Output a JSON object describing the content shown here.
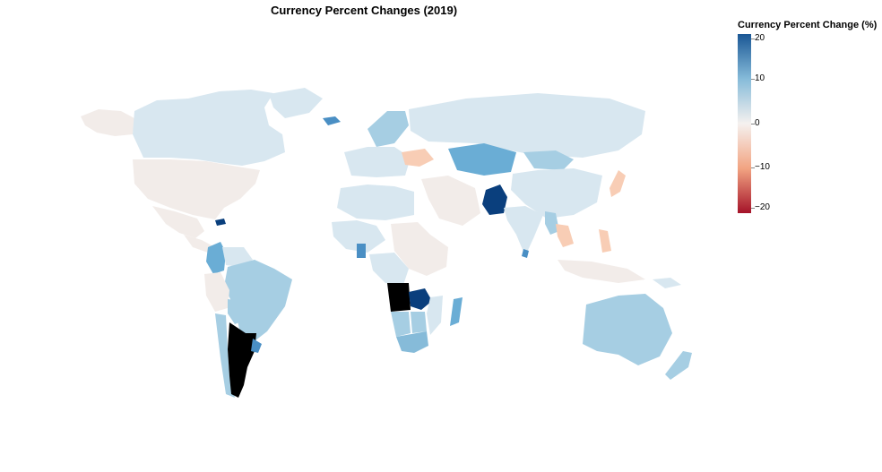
{
  "title": "Currency Percent Changes (2019)",
  "legend": {
    "title": "Currency Percent Change (%)",
    "ticks": [
      "20",
      "10",
      "0",
      "−10",
      "−20"
    ],
    "domain": [
      -22,
      22
    ],
    "colors": {
      "max": "#1a5795",
      "mid": "#f5f1ef",
      "min": "#a51329"
    }
  },
  "colors": {
    "no_data": "#000000",
    "strong_positive": "#0a3f7d",
    "positive": "#6aadd5",
    "mild_positive": "#a6cee3",
    "neutral_pos": "#d8e7f0",
    "neutral": "#f2ece9",
    "negative": "#f8cdb5",
    "background": "#ffffff"
  },
  "chart_data": {
    "type": "choropleth",
    "title": "Currency Percent Changes (2019)",
    "value_label": "Currency Percent Change (%)",
    "scale_range": [
      -22,
      22
    ],
    "regions": [
      {
        "name": "Canada",
        "value": 2
      },
      {
        "name": "United States",
        "value": 0
      },
      {
        "name": "Greenland",
        "value": 2
      },
      {
        "name": "Alaska",
        "value": 0
      },
      {
        "name": "Mexico",
        "value": 0
      },
      {
        "name": "Colombia",
        "value": 9
      },
      {
        "name": "Brazil",
        "value": 6
      },
      {
        "name": "Peru",
        "value": 1
      },
      {
        "name": "Chile",
        "value": 4
      },
      {
        "name": "Argentina",
        "value": null
      },
      {
        "name": "Uruguay",
        "value": 12
      },
      {
        "name": "Bolivia",
        "value": 3
      },
      {
        "name": "Paraguay",
        "value": 5
      },
      {
        "name": "Venezuela",
        "value": 3
      },
      {
        "name": "Dominican Republic",
        "value": 20
      },
      {
        "name": "Iceland",
        "value": 12
      },
      {
        "name": "Scandinavia",
        "value": 5
      },
      {
        "name": "Western Europe",
        "value": 3
      },
      {
        "name": "Ukraine",
        "value": -4
      },
      {
        "name": "Russia",
        "value": 2
      },
      {
        "name": "Kazakhstan",
        "value": 9
      },
      {
        "name": "Mongolia",
        "value": 6
      },
      {
        "name": "China",
        "value": 2
      },
      {
        "name": "Japan",
        "value": -2
      },
      {
        "name": "Pakistan",
        "value": 22
      },
      {
        "name": "India",
        "value": 2
      },
      {
        "name": "Sri Lanka",
        "value": 9
      },
      {
        "name": "Myanmar",
        "value": 5
      },
      {
        "name": "Thailand",
        "value": -4
      },
      {
        "name": "Indonesia",
        "value": -1
      },
      {
        "name": "Philippines",
        "value": -2
      },
      {
        "name": "Middle East",
        "value": 0
      },
      {
        "name": "North Africa",
        "value": 3
      },
      {
        "name": "West Africa",
        "value": 3
      },
      {
        "name": "Ghana",
        "value": 12
      },
      {
        "name": "Angola",
        "value": null
      },
      {
        "name": "Zambia",
        "value": 20
      },
      {
        "name": "Mozambique",
        "value": 2
      },
      {
        "name": "Madagascar",
        "value": 9
      },
      {
        "name": "Namibia",
        "value": 5
      },
      {
        "name": "South Africa",
        "value": 7
      },
      {
        "name": "East Africa",
        "value": 0
      },
      {
        "name": "Australia",
        "value": 6
      },
      {
        "name": "New Zealand",
        "value": 5
      },
      {
        "name": "Papua New Guinea",
        "value": 2
      }
    ]
  }
}
